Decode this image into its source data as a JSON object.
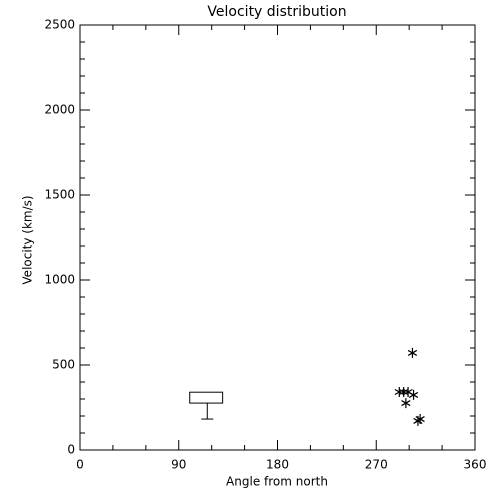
{
  "chart_data": {
    "type": "box-scatter",
    "title": "Velocity distribution",
    "xlabel": "Angle from north",
    "ylabel": "Velocity (km/s)",
    "xlim": [
      0,
      360
    ],
    "ylim": [
      0,
      2500
    ],
    "xticks": [
      0,
      90,
      180,
      270,
      360
    ],
    "yticks": [
      0,
      500,
      1000,
      1500,
      2000,
      2500
    ],
    "xminor": 3,
    "yminor": 5,
    "color": "#000000",
    "boxes": [
      {
        "xrange": [
          100,
          130
        ],
        "x": 116,
        "min": 182,
        "q1": 276,
        "q3": 340
      }
    ],
    "points": {
      "x": [
        291,
        295,
        299,
        304,
        297,
        303,
        308,
        310
      ],
      "y": [
        341,
        341,
        341,
        324,
        276,
        571,
        171,
        182
      ]
    }
  }
}
